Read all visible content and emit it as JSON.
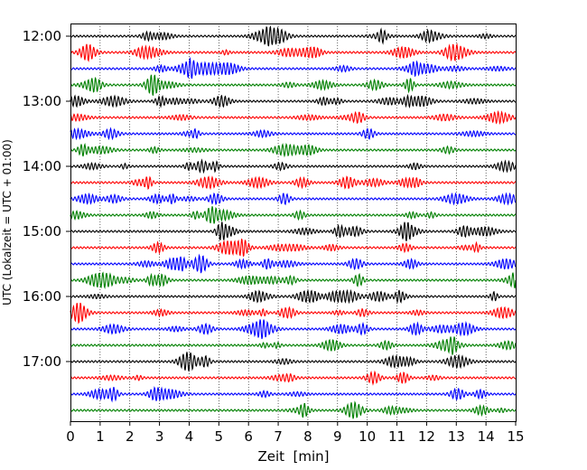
{
  "chart_data": {
    "type": "line",
    "title": "",
    "xlabel": "Zeit  [min]",
    "ylabel": "UTC (Lokalzeit = UTC + 01:00)",
    "xlim": [
      0,
      15
    ],
    "x_ticks": [
      0,
      1,
      2,
      3,
      4,
      5,
      6,
      7,
      8,
      9,
      10,
      11,
      12,
      13,
      14,
      15
    ],
    "x_tick_labels": [
      "0",
      "1",
      "2",
      "3",
      "4",
      "5",
      "6",
      "7",
      "8",
      "9",
      "10",
      "11",
      "12",
      "13",
      "14",
      "15"
    ],
    "y_tick_labels": [
      "12:00",
      "13:00",
      "14:00",
      "15:00",
      "16:00",
      "17:00"
    ],
    "trace_interval_minutes": 15,
    "grid": "vertical dotted at each minute",
    "traces": [
      {
        "start": "12:00",
        "color": "#000000"
      },
      {
        "start": "12:15",
        "color": "#ff0000"
      },
      {
        "start": "12:30",
        "color": "#0000ff"
      },
      {
        "start": "12:45",
        "color": "#008000"
      },
      {
        "start": "13:00",
        "color": "#000000"
      },
      {
        "start": "13:15",
        "color": "#ff0000"
      },
      {
        "start": "13:30",
        "color": "#0000ff"
      },
      {
        "start": "13:45",
        "color": "#008000"
      },
      {
        "start": "14:00",
        "color": "#000000"
      },
      {
        "start": "14:15",
        "color": "#ff0000"
      },
      {
        "start": "14:30",
        "color": "#0000ff"
      },
      {
        "start": "14:45",
        "color": "#008000"
      },
      {
        "start": "15:00",
        "color": "#000000"
      },
      {
        "start": "15:15",
        "color": "#ff0000"
      },
      {
        "start": "15:30",
        "color": "#0000ff"
      },
      {
        "start": "15:45",
        "color": "#008000"
      },
      {
        "start": "16:00",
        "color": "#000000"
      },
      {
        "start": "16:15",
        "color": "#ff0000"
      },
      {
        "start": "16:30",
        "color": "#0000ff"
      },
      {
        "start": "16:45",
        "color": "#008000"
      },
      {
        "start": "17:00",
        "color": "#000000"
      },
      {
        "start": "17:15",
        "color": "#ff0000"
      },
      {
        "start": "17:30",
        "color": "#0000ff"
      },
      {
        "start": "17:45",
        "color": "#008000"
      }
    ]
  }
}
